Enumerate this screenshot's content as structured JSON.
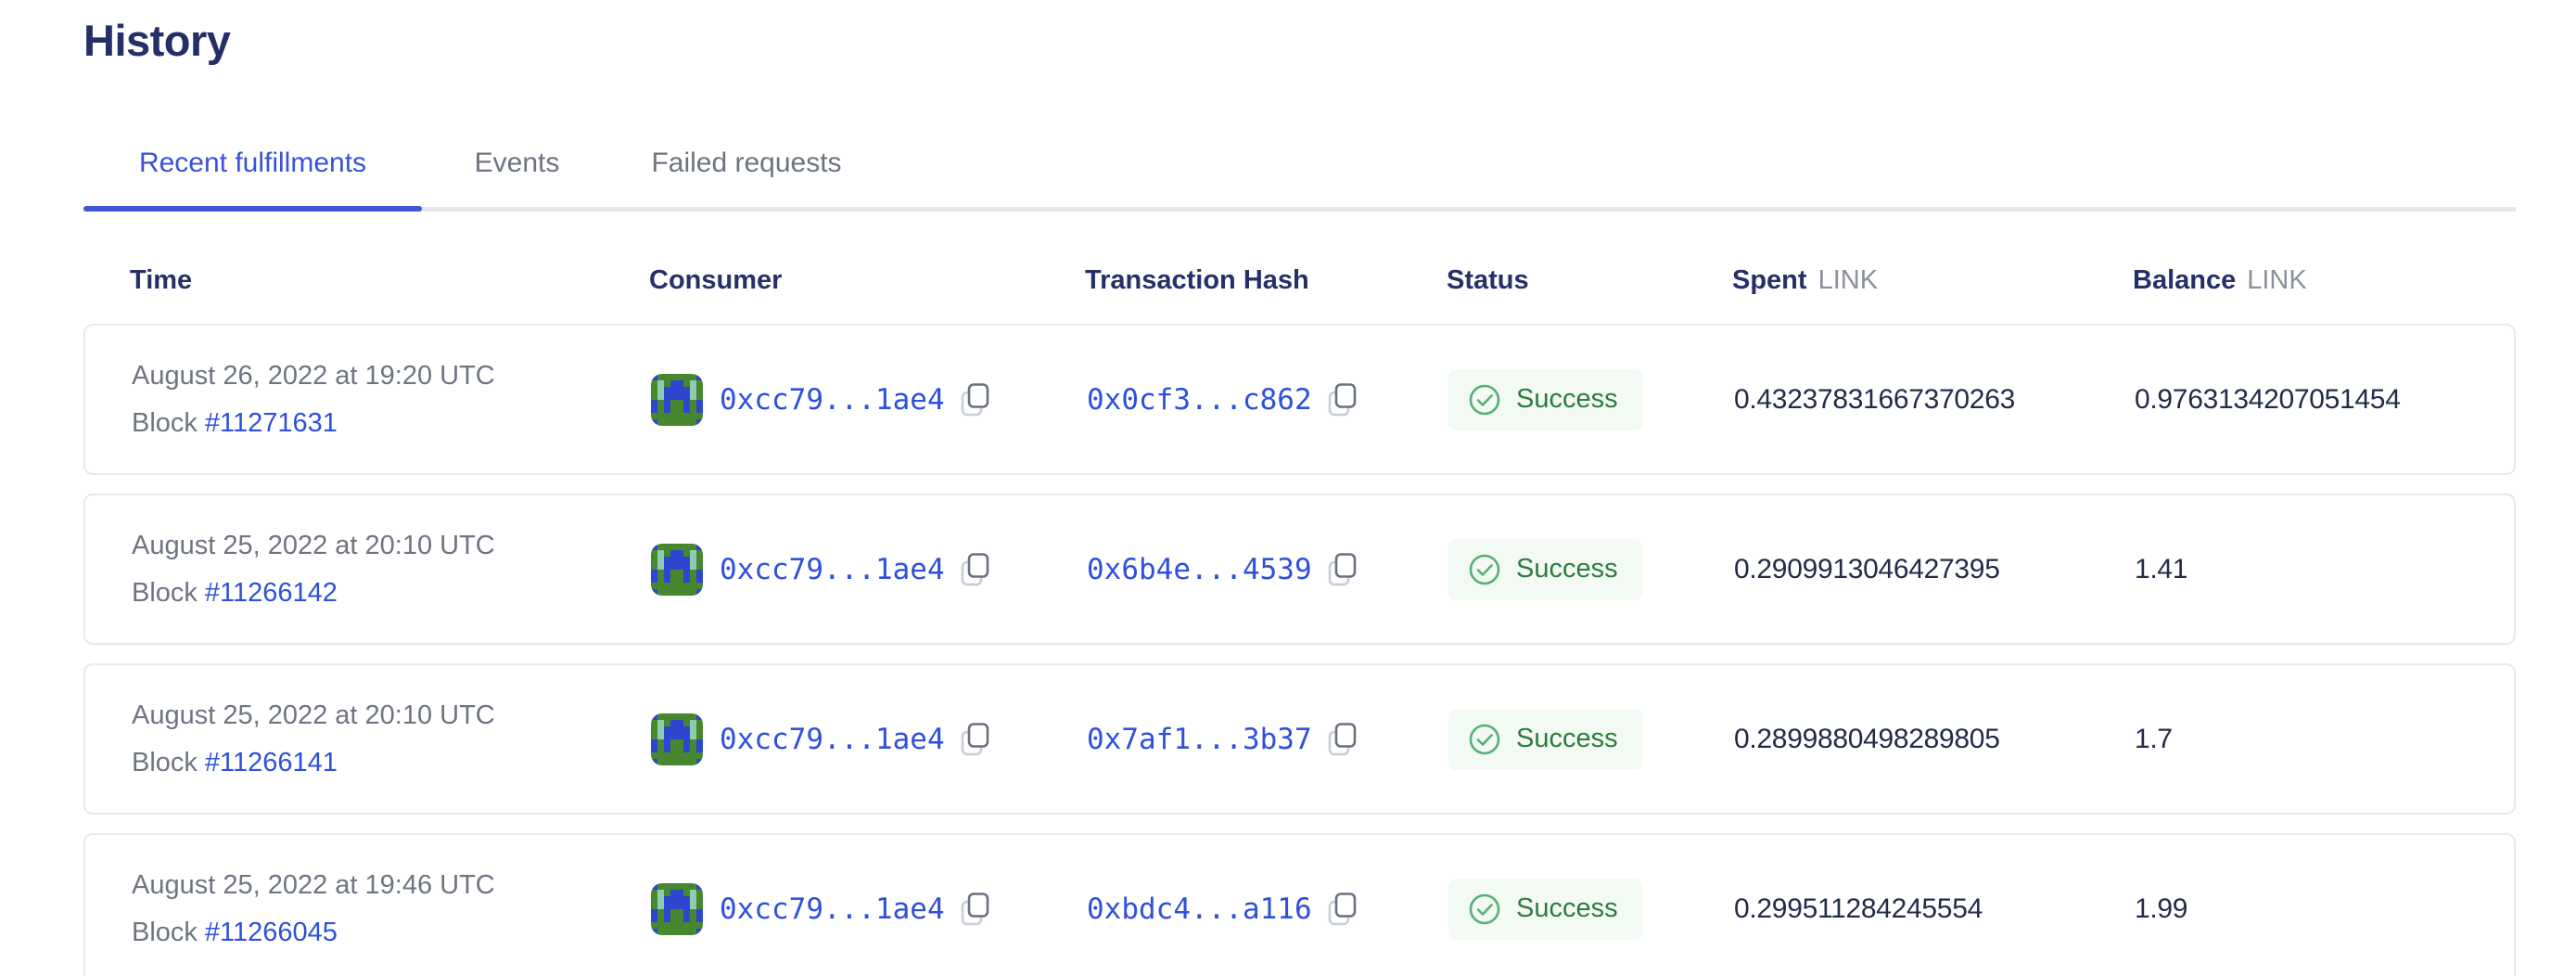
{
  "page": {
    "title": "History"
  },
  "tabs": [
    {
      "label": "Recent fulfillments",
      "active": true
    },
    {
      "label": "Events",
      "active": false
    },
    {
      "label": "Failed requests",
      "active": false
    }
  ],
  "table": {
    "headers": {
      "time": "Time",
      "consumer": "Consumer",
      "tx_hash": "Transaction Hash",
      "status": "Status",
      "spent": "Spent",
      "spent_unit": "LINK",
      "balance": "Balance",
      "balance_unit": "LINK"
    },
    "block_prefix": "Block",
    "rows": [
      {
        "time": "August 26, 2022 at 19:20 UTC",
        "block": "#11271631",
        "consumer": "0xcc79...1ae4",
        "tx_hash": "0x0cf3...c862",
        "status": "Success",
        "spent": "0.43237831667370263",
        "balance": "0.9763134207051454"
      },
      {
        "time": "August 25, 2022 at 20:10 UTC",
        "block": "#11266142",
        "consumer": "0xcc79...1ae4",
        "tx_hash": "0x6b4e...4539",
        "status": "Success",
        "spent": "0.2909913046427395",
        "balance": "1.41"
      },
      {
        "time": "August 25, 2022 at 20:10 UTC",
        "block": "#11266141",
        "consumer": "0xcc79...1ae4",
        "tx_hash": "0x7af1...3b37",
        "status": "Success",
        "spent": "0.2899880498289805",
        "balance": "1.7"
      },
      {
        "time": "August 25, 2022 at 19:46 UTC",
        "block": "#11266045",
        "consumer": "0xcc79...1ae4",
        "tx_hash": "0xbdc4...a116",
        "status": "Success",
        "spent": "0.299511284245554",
        "balance": "1.99"
      }
    ]
  },
  "identicon": {
    "colors": {
      "G": "#46872f",
      "B": "#2c46cf",
      "T": "#8ecbaf"
    },
    "pattern": [
      "BGGGGGGB",
      "GTGBBGTG",
      "GTBBBBTG",
      "GTBBBBTG",
      "BGBGGBGB",
      "BGBGGBGB",
      "GGGGGGGG",
      "BGGGGGGB"
    ]
  },
  "colors": {
    "heading": "#242e68",
    "link": "#2f4fdd",
    "tab_active": "#3b51d6",
    "text_gray": "#6e7482",
    "value_navy": "#232b48",
    "success_text": "#2c7c3f",
    "success_icon": "#55b174",
    "success_bg": "#f2faf3",
    "card_border": "#e8e9ec"
  }
}
